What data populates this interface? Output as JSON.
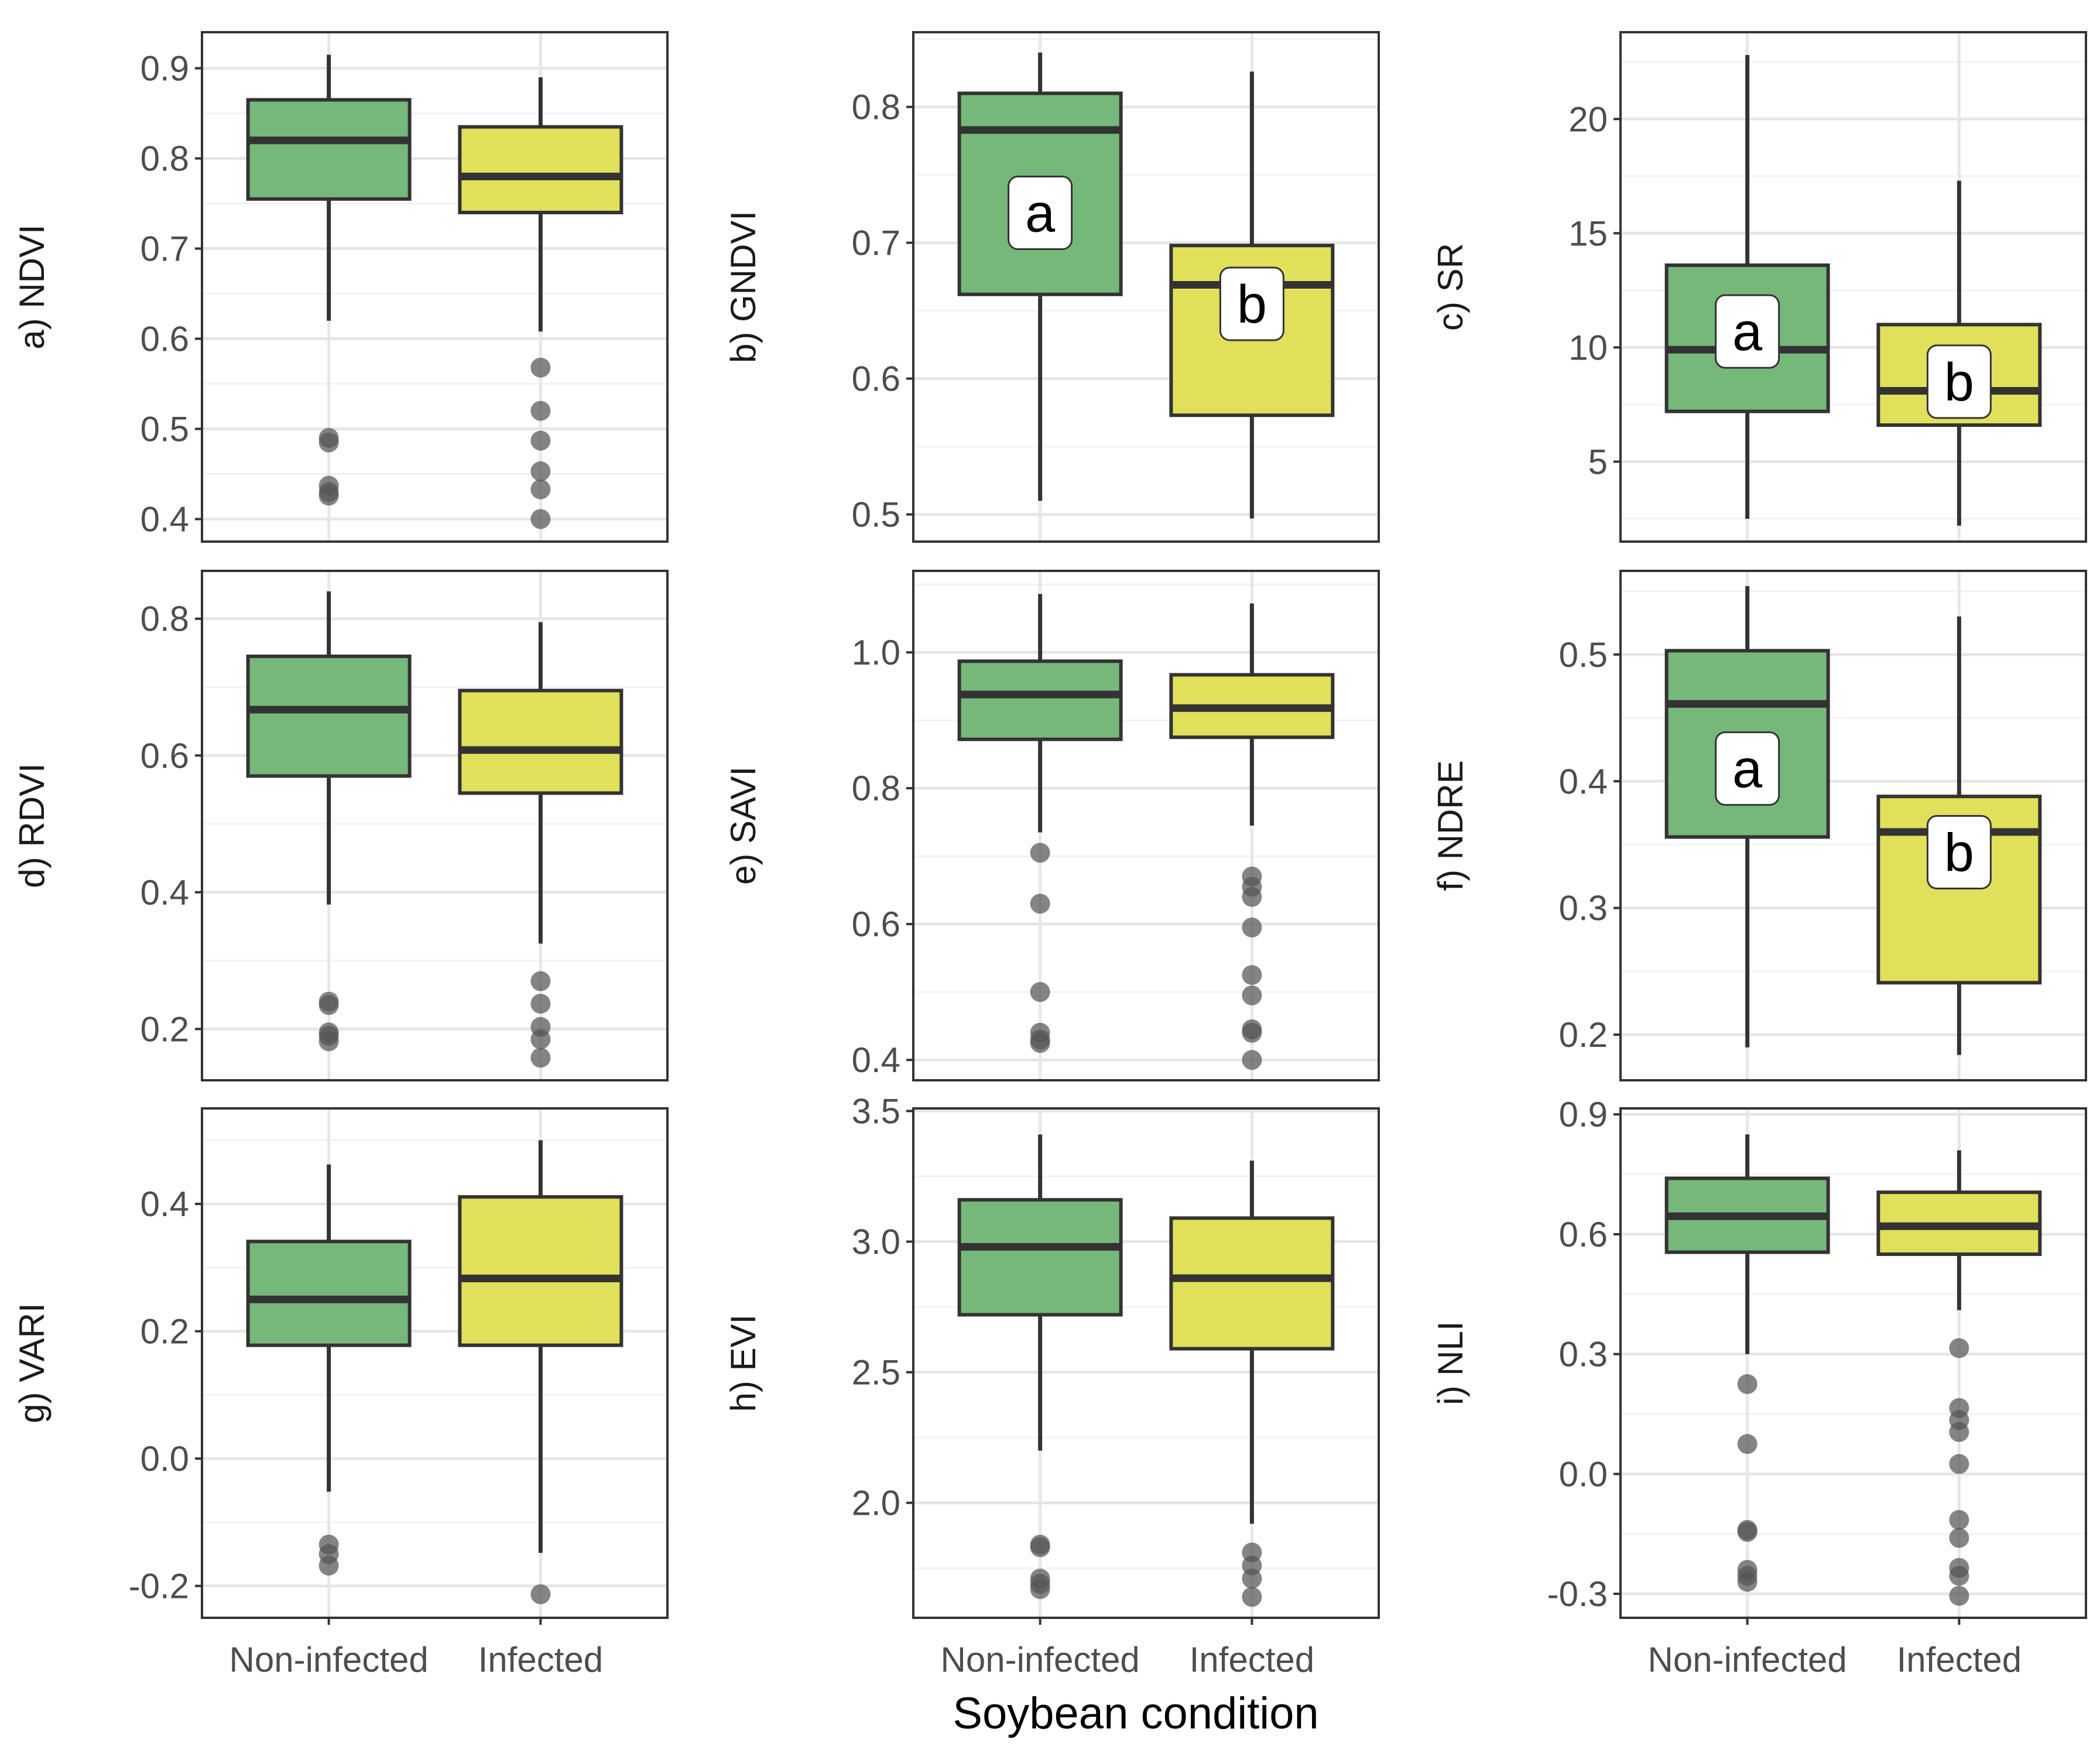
{
  "chart_data": {
    "type": "box",
    "xlabel": "Soybean condition",
    "categories": [
      "Non-infected",
      "Infected"
    ],
    "colors": {
      "Non-infected": "#76b879",
      "Infected": "#e0e05a",
      "outlier": "#555555",
      "line": "#333333"
    },
    "panels": [
      {
        "id": "ndvi",
        "ylabel": "a) NDVI",
        "ylim": [
          0.375,
          0.94
        ],
        "ticks": [
          0.4,
          0.5,
          0.6,
          0.7,
          0.8,
          0.9
        ],
        "tick_labels": [
          "0.4",
          "0.5",
          "0.6",
          "0.7",
          "0.8",
          "0.9"
        ],
        "boxes": [
          {
            "category": "Non-infected",
            "min": 0.62,
            "q1": 0.755,
            "median": 0.82,
            "q3": 0.865,
            "max": 0.915,
            "outliers": [
              0.49,
              0.485,
              0.437,
              0.43,
              0.426
            ],
            "letter": null
          },
          {
            "category": "Infected",
            "min": 0.608,
            "q1": 0.74,
            "median": 0.78,
            "q3": 0.835,
            "max": 0.89,
            "outliers": [
              0.568,
              0.52,
              0.487,
              0.453,
              0.433,
              0.4
            ],
            "letter": null
          }
        ]
      },
      {
        "id": "gndvi",
        "ylabel": "b) GNDVI",
        "ylim": [
          0.48,
          0.855
        ],
        "ticks": [
          0.5,
          0.6,
          0.7,
          0.8
        ],
        "tick_labels": [
          "0.5",
          "0.6",
          "0.7",
          "0.8"
        ],
        "boxes": [
          {
            "category": "Non-infected",
            "min": 0.51,
            "q1": 0.662,
            "median": 0.783,
            "q3": 0.81,
            "max": 0.84,
            "outliers": [],
            "letter": "a",
            "letter_y": 0.722
          },
          {
            "category": "Infected",
            "min": 0.497,
            "q1": 0.573,
            "median": 0.669,
            "q3": 0.698,
            "max": 0.826,
            "outliers": [],
            "letter": "b",
            "letter_y": 0.655
          }
        ]
      },
      {
        "id": "sr",
        "ylabel": "c) SR",
        "ylim": [
          1.5,
          23.8
        ],
        "ticks": [
          5,
          10,
          15,
          20
        ],
        "tick_labels": [
          "5",
          "10",
          "15",
          "20"
        ],
        "boxes": [
          {
            "category": "Non-infected",
            "min": 2.5,
            "q1": 7.2,
            "median": 9.9,
            "q3": 13.6,
            "max": 22.8,
            "outliers": [],
            "letter": "a",
            "letter_y": 10.7
          },
          {
            "category": "Infected",
            "min": 2.2,
            "q1": 6.6,
            "median": 8.1,
            "q3": 11.0,
            "max": 17.3,
            "outliers": [],
            "letter": "b",
            "letter_y": 8.5
          }
        ]
      },
      {
        "id": "rdvi",
        "ylabel": "d) RDVI",
        "ylim": [
          0.125,
          0.87
        ],
        "ticks": [
          0.2,
          0.4,
          0.6,
          0.8
        ],
        "tick_labels": [
          "0.2",
          "0.4",
          "0.6",
          "0.8"
        ],
        "boxes": [
          {
            "category": "Non-infected",
            "min": 0.382,
            "q1": 0.57,
            "median": 0.667,
            "q3": 0.745,
            "max": 0.84,
            "outliers": [
              0.24,
              0.235,
              0.195,
              0.19,
              0.182
            ],
            "letter": null
          },
          {
            "category": "Infected",
            "min": 0.325,
            "q1": 0.545,
            "median": 0.608,
            "q3": 0.695,
            "max": 0.795,
            "outliers": [
              0.27,
              0.237,
              0.203,
              0.185,
              0.158
            ],
            "letter": null
          }
        ]
      },
      {
        "id": "savi",
        "ylabel": "e) SAVI",
        "ylim": [
          0.37,
          1.12
        ],
        "ticks": [
          0.4,
          0.6,
          0.8,
          1.0
        ],
        "tick_labels": [
          "0.4",
          "0.6",
          "0.8",
          "1.0"
        ],
        "boxes": [
          {
            "category": "Non-infected",
            "min": 0.735,
            "q1": 0.872,
            "median": 0.938,
            "q3": 0.987,
            "max": 1.086,
            "outliers": [
              0.705,
              0.63,
              0.5,
              0.44,
              0.43,
              0.425
            ],
            "letter": null
          },
          {
            "category": "Infected",
            "min": 0.745,
            "q1": 0.875,
            "median": 0.918,
            "q3": 0.967,
            "max": 1.072,
            "outliers": [
              0.67,
              0.655,
              0.64,
              0.595,
              0.525,
              0.495,
              0.445,
              0.44,
              0.4
            ],
            "letter": null
          }
        ]
      },
      {
        "id": "ndre",
        "ylabel": "f) NDRE",
        "ylim": [
          0.164,
          0.566
        ],
        "ticks": [
          0.2,
          0.3,
          0.4,
          0.5
        ],
        "tick_labels": [
          "0.2",
          "0.3",
          "0.4",
          "0.5"
        ],
        "boxes": [
          {
            "category": "Non-infected",
            "min": 0.19,
            "q1": 0.356,
            "median": 0.461,
            "q3": 0.503,
            "max": 0.554,
            "outliers": [],
            "letter": "a",
            "letter_y": 0.41
          },
          {
            "category": "Infected",
            "min": 0.184,
            "q1": 0.241,
            "median": 0.36,
            "q3": 0.388,
            "max": 0.53,
            "outliers": [],
            "letter": "b",
            "letter_y": 0.344
          }
        ]
      },
      {
        "id": "vari",
        "ylabel": "g) VARI",
        "ylim": [
          -0.25,
          0.55
        ],
        "ticks": [
          -0.2,
          0.0,
          0.2,
          0.4
        ],
        "tick_labels": [
          "-0.2",
          "0.0",
          "0.2",
          "0.4"
        ],
        "boxes": [
          {
            "category": "Non-infected",
            "min": -0.052,
            "q1": 0.178,
            "median": 0.25,
            "q3": 0.341,
            "max": 0.462,
            "outliers": [
              -0.135,
              -0.15,
              -0.168
            ],
            "letter": null
          },
          {
            "category": "Infected",
            "min": -0.148,
            "q1": 0.178,
            "median": 0.283,
            "q3": 0.411,
            "max": 0.5,
            "outliers": [
              -0.213
            ],
            "letter": null
          }
        ]
      },
      {
        "id": "evi",
        "ylabel": "h) EVI",
        "ylim": [
          1.56,
          3.51
        ],
        "ticks": [
          2.0,
          2.5,
          3.0,
          3.5
        ],
        "tick_labels": [
          "2.0",
          "2.5",
          "3.0",
          "3.5"
        ],
        "boxes": [
          {
            "category": "Non-infected",
            "min": 2.2,
            "q1": 2.72,
            "median": 2.98,
            "q3": 3.16,
            "max": 3.41,
            "outliers": [
              1.84,
              1.83,
              1.71,
              1.69,
              1.67
            ],
            "letter": null
          },
          {
            "category": "Infected",
            "min": 1.92,
            "q1": 2.59,
            "median": 2.86,
            "q3": 3.09,
            "max": 3.31,
            "outliers": [
              1.81,
              1.76,
              1.71,
              1.64
            ],
            "letter": null
          }
        ]
      },
      {
        "id": "nli",
        "ylabel": "i) NLI",
        "ylim": [
          -0.36,
          0.915
        ],
        "ticks": [
          -0.3,
          0.0,
          0.3,
          0.6,
          0.9
        ],
        "tick_labels": [
          "-0.3",
          "0.0",
          "0.3",
          "0.6",
          "0.9"
        ],
        "boxes": [
          {
            "category": "Non-infected",
            "min": 0.3,
            "q1": 0.555,
            "median": 0.645,
            "q3": 0.74,
            "max": 0.85,
            "outliers": [
              0.225,
              0.075,
              -0.14,
              -0.145,
              -0.24,
              -0.255,
              -0.27
            ],
            "letter": null
          },
          {
            "category": "Infected",
            "min": 0.41,
            "q1": 0.55,
            "median": 0.62,
            "q3": 0.705,
            "max": 0.81,
            "outliers": [
              0.315,
              0.165,
              0.135,
              0.105,
              0.025,
              -0.115,
              -0.16,
              -0.235,
              -0.255,
              -0.305
            ],
            "letter": null
          }
        ]
      }
    ]
  }
}
